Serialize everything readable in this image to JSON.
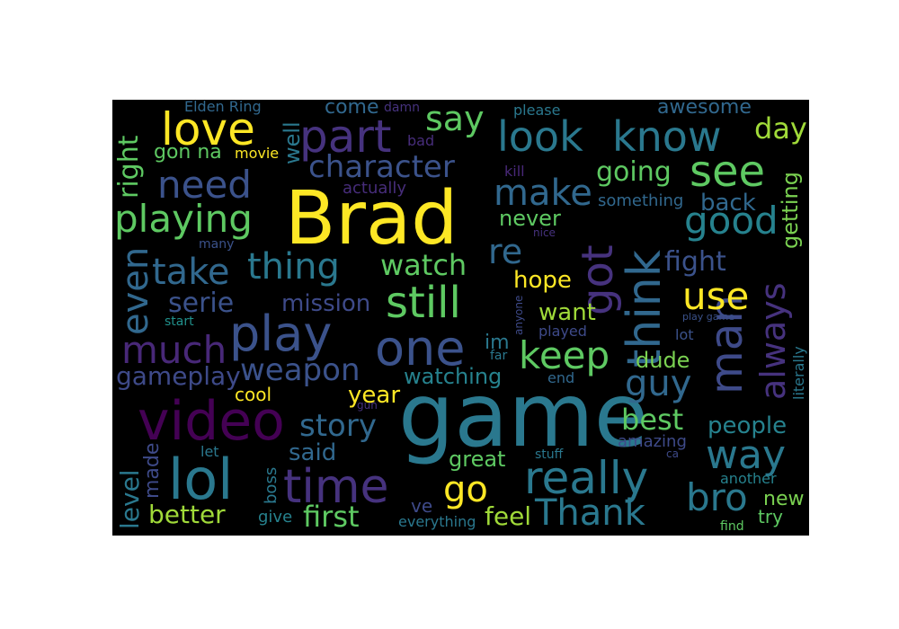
{
  "wordcloud": {
    "background": "#000000",
    "palette": [
      "#440154",
      "#3b528b",
      "#21918c",
      "#5ec962",
      "#fde725"
    ],
    "words": [
      {
        "text": "game",
        "color": "#2a788e"
      },
      {
        "text": "Brad",
        "color": "#fde725"
      },
      {
        "text": "video",
        "color": "#440154"
      },
      {
        "text": "lol",
        "color": "#2a788e"
      },
      {
        "text": "one",
        "color": "#3b528b"
      },
      {
        "text": "play",
        "color": "#3b528b"
      },
      {
        "text": "know",
        "color": "#2a788e"
      },
      {
        "text": "look",
        "color": "#2a788e"
      },
      {
        "text": "love",
        "color": "#fde725"
      },
      {
        "text": "part",
        "color": "#46327e"
      },
      {
        "text": "time",
        "color": "#46327e"
      },
      {
        "text": "really",
        "color": "#2a788e"
      },
      {
        "text": "Thank",
        "color": "#2a788e"
      },
      {
        "text": "think",
        "color": "#31688e"
      },
      {
        "text": "man",
        "color": "#3e4a89"
      },
      {
        "text": "got",
        "color": "#46327e"
      },
      {
        "text": "still",
        "color": "#5ec962"
      },
      {
        "text": "see",
        "color": "#5ec962"
      },
      {
        "text": "playing",
        "color": "#5ec962"
      },
      {
        "text": "thing",
        "color": "#2a788e"
      },
      {
        "text": "much",
        "color": "#482878"
      },
      {
        "text": "use",
        "color": "#fde725"
      },
      {
        "text": "way",
        "color": "#2a788e"
      },
      {
        "text": "make",
        "color": "#31688e"
      },
      {
        "text": "good",
        "color": "#26828e"
      },
      {
        "text": "keep",
        "color": "#5ec962"
      },
      {
        "text": "guy",
        "color": "#31688e"
      },
      {
        "text": "bro",
        "color": "#2a788e"
      },
      {
        "text": "go",
        "color": "#fde725"
      },
      {
        "text": "need",
        "color": "#3b528b"
      },
      {
        "text": "take",
        "color": "#31688e"
      },
      {
        "text": "even",
        "color": "#31688e"
      },
      {
        "text": "always",
        "color": "#46327e"
      },
      {
        "text": "weapon",
        "color": "#3b528b"
      },
      {
        "text": "character",
        "color": "#3b528b"
      },
      {
        "text": "say",
        "color": "#5ec962"
      },
      {
        "text": "story",
        "color": "#31688e"
      },
      {
        "text": "re",
        "color": "#31688e"
      },
      {
        "text": "watch",
        "color": "#5ec962"
      },
      {
        "text": "first",
        "color": "#5ec962"
      },
      {
        "text": "best",
        "color": "#5ec962"
      },
      {
        "text": "fight",
        "color": "#3b528b"
      },
      {
        "text": "going",
        "color": "#5ec962"
      },
      {
        "text": "right",
        "color": "#5ec962"
      },
      {
        "text": "day",
        "color": "#a0da39"
      },
      {
        "text": "serie",
        "color": "#3b528b"
      },
      {
        "text": "better",
        "color": "#a0da39"
      },
      {
        "text": "gameplay",
        "color": "#3e4a89"
      },
      {
        "text": "people",
        "color": "#26828e"
      },
      {
        "text": "feel",
        "color": "#a0da39"
      },
      {
        "text": "mission",
        "color": "#3e4a89"
      },
      {
        "text": "back",
        "color": "#31688e"
      },
      {
        "text": "getting",
        "color": "#7ad151"
      },
      {
        "text": "level",
        "color": "#2a788e"
      },
      {
        "text": "watching",
        "color": "#26828e"
      },
      {
        "text": "want",
        "color": "#a0da39"
      },
      {
        "text": "hope",
        "color": "#fde725"
      },
      {
        "text": "year",
        "color": "#fde725"
      },
      {
        "text": "said",
        "color": "#31688e"
      },
      {
        "text": "dude",
        "color": "#7ad151"
      },
      {
        "text": "never",
        "color": "#5ec962"
      },
      {
        "text": "great",
        "color": "#5ec962"
      },
      {
        "text": "well",
        "color": "#2a788e"
      },
      {
        "text": "made",
        "color": "#3e4a89"
      },
      {
        "text": "gon na",
        "color": "#5ec962"
      },
      {
        "text": "im",
        "color": "#2a788e"
      },
      {
        "text": "awesome",
        "color": "#31688e"
      },
      {
        "text": "new",
        "color": "#7ad151"
      },
      {
        "text": "come",
        "color": "#31688e"
      },
      {
        "text": "cool",
        "color": "#fde725"
      },
      {
        "text": "actually",
        "color": "#472d7b"
      },
      {
        "text": "something",
        "color": "#31688e"
      },
      {
        "text": "ve",
        "color": "#3e4a89"
      },
      {
        "text": "try",
        "color": "#5ec962"
      },
      {
        "text": "literally",
        "color": "#2a788e"
      },
      {
        "text": "give",
        "color": "#26828e"
      },
      {
        "text": "amazing",
        "color": "#3e4a89"
      },
      {
        "text": "another",
        "color": "#26828e"
      },
      {
        "text": "everything",
        "color": "#2a788e"
      },
      {
        "text": "end",
        "color": "#31688e"
      },
      {
        "text": "boss",
        "color": "#2a788e"
      },
      {
        "text": "Elden Ring",
        "color": "#31688e"
      },
      {
        "text": "please",
        "color": "#2a788e"
      },
      {
        "text": "movie",
        "color": "#fde725"
      },
      {
        "text": "kill",
        "color": "#482878"
      },
      {
        "text": "played",
        "color": "#3e4a89"
      },
      {
        "text": "bad",
        "color": "#472d7b"
      },
      {
        "text": "lot",
        "color": "#3b528b"
      },
      {
        "text": "let",
        "color": "#2a788e"
      },
      {
        "text": "stuff",
        "color": "#2a788e"
      },
      {
        "text": "damn",
        "color": "#46327e"
      },
      {
        "text": "many",
        "color": "#3b528b"
      },
      {
        "text": "start",
        "color": "#21918c"
      },
      {
        "text": "far",
        "color": "#2a788e"
      },
      {
        "text": "nice",
        "color": "#46327e"
      },
      {
        "text": "anyone",
        "color": "#3e4a89"
      },
      {
        "text": "ca",
        "color": "#3e4a89"
      },
      {
        "text": "play game",
        "color": "#3b528b"
      },
      {
        "text": "find",
        "color": "#5ec962"
      },
      {
        "text": "gun",
        "color": "#46327e"
      }
    ]
  }
}
